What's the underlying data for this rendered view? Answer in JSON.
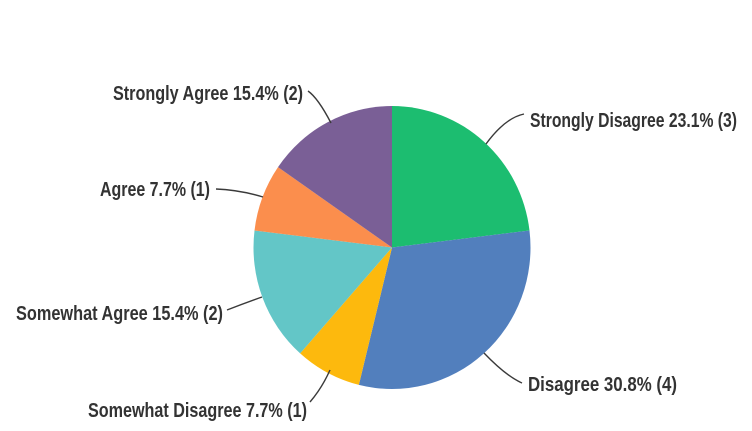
{
  "chart_data": {
    "type": "pie",
    "title": "",
    "legend_position": "none",
    "start_angle_deg": 0,
    "direction": "clockwise",
    "label_format": "{label} {percent}% ({count})",
    "text_color": "#333333",
    "leader_line_color": "#3a3a3a",
    "background_color": "#ffffff",
    "slices": [
      {
        "label": "Strongly Disagree",
        "percent": 23.1,
        "count": 3,
        "color": "#1cbd70"
      },
      {
        "label": "Disagree",
        "percent": 30.8,
        "count": 4,
        "color": "#527fbd"
      },
      {
        "label": "Somewhat Disagree",
        "percent": 7.7,
        "count": 1,
        "color": "#fdb90d"
      },
      {
        "label": "Somewhat Agree",
        "percent": 15.4,
        "count": 2,
        "color": "#63c6c7"
      },
      {
        "label": "Agree",
        "percent": 7.7,
        "count": 1,
        "color": "#fb8e4d"
      },
      {
        "label": "Strongly Agree",
        "percent": 15.4,
        "count": 2,
        "color": "#7a5f96"
      }
    ]
  }
}
